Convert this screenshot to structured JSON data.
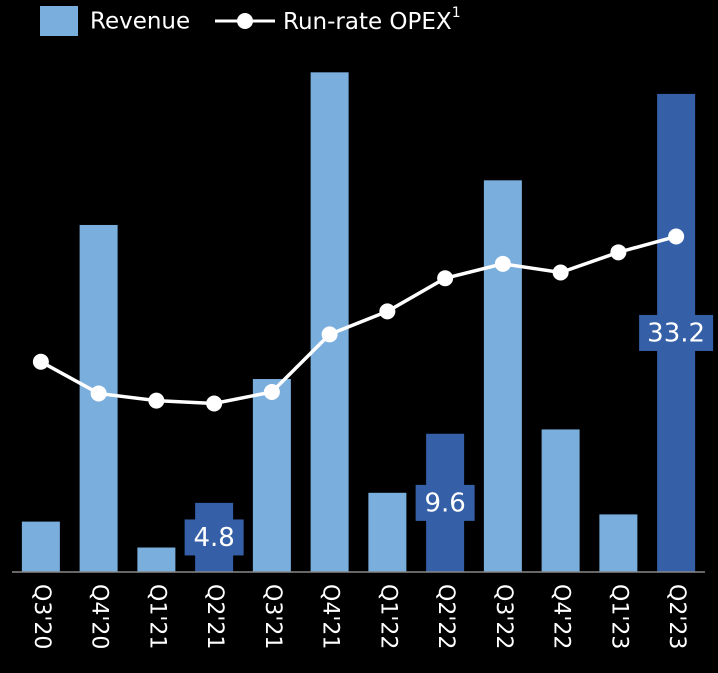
{
  "chart_data": {
    "type": "bar_line",
    "categories": [
      "Q3'20",
      "Q4'20",
      "Q1'21",
      "Q2'21",
      "Q3'21",
      "Q4'21",
      "Q1'22",
      "Q2'22",
      "Q3'22",
      "Q4'22",
      "Q1'23",
      "Q2'23"
    ],
    "series": [
      {
        "name": "Revenue",
        "type": "bar",
        "color": "#7aaedd",
        "colors": [
          "#7aaedd",
          "#7aaedd",
          "#7aaedd",
          "#3560a8",
          "#7aaedd",
          "#7aaedd",
          "#7aaedd",
          "#3560a8",
          "#7aaedd",
          "#7aaedd",
          "#7aaedd",
          "#3560a8"
        ],
        "values": [
          3.5,
          24.1,
          1.7,
          4.8,
          13.4,
          34.7,
          5.5,
          9.6,
          27.2,
          9.9,
          4.0,
          33.2
        ],
        "value_labels": [
          null,
          null,
          null,
          "4.8",
          null,
          null,
          null,
          "9.6",
          null,
          null,
          null,
          "33.2"
        ]
      },
      {
        "name": "Run-rate OPEX",
        "name_superscript": "1",
        "type": "line",
        "color": "#ffffff",
        "values": [
          14.6,
          12.4,
          11.9,
          11.7,
          12.5,
          16.5,
          18.1,
          20.4,
          21.4,
          20.8,
          22.2,
          23.3
        ]
      }
    ],
    "ylim": [
      0,
      35
    ]
  }
}
